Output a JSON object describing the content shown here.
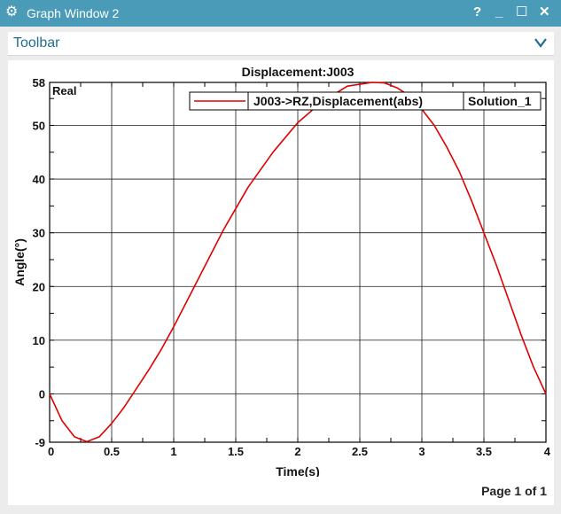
{
  "window": {
    "title": "Graph Window 2",
    "icons": {
      "settings": "gear-icon",
      "help": "help-icon",
      "minimize": "minimize-icon",
      "maximize": "maximize-icon",
      "close": "close-icon"
    },
    "help_label": "?"
  },
  "toolbar": {
    "label": "Toolbar",
    "expand_icon": "chevron-down-icon"
  },
  "colors": {
    "titlebar": "#4a9bb8",
    "toolbar_text": "#1e6f93",
    "series": "#e00000"
  },
  "page_indicator": "Page 1 of 1",
  "chart_data": {
    "type": "line",
    "title": "Displacement:J003",
    "xlabel": "Time(s)",
    "ylabel": "Angle(°)",
    "corner_label": "Real",
    "xlim": [
      0,
      4
    ],
    "ylim": [
      -9,
      58
    ],
    "xticks": [
      0,
      0.5,
      1,
      1.5,
      2,
      2.5,
      3,
      3.5,
      4
    ],
    "xtick_labels": [
      "0",
      "0.5",
      "1",
      "1.5",
      "2",
      "2.5",
      "3",
      "3.5",
      "4"
    ],
    "yticks": [
      -9,
      0,
      10,
      20,
      30,
      40,
      50,
      58
    ],
    "ytick_labels": [
      "-9",
      "0",
      "10",
      "20",
      "30",
      "40",
      "50",
      "58"
    ],
    "grid": true,
    "legend": {
      "placement": "top-right"
    },
    "series": [
      {
        "name": "J003->RZ,Displacement(abs)",
        "name_suffix": "Solution_1",
        "color": "#e00000",
        "x": [
          0,
          0.1,
          0.2,
          0.3,
          0.4,
          0.5,
          0.6,
          0.7,
          0.8,
          0.9,
          1.0,
          1.2,
          1.4,
          1.6,
          1.8,
          2.0,
          2.2,
          2.4,
          2.6,
          2.7,
          2.8,
          2.9,
          3.0,
          3.1,
          3.2,
          3.3,
          3.4,
          3.5,
          3.6,
          3.7,
          3.8,
          3.9,
          4.0
        ],
        "values": [
          0,
          -5,
          -8,
          -8.9,
          -8,
          -5.5,
          -2.5,
          1,
          4.5,
          8.3,
          12.5,
          21.5,
          30.5,
          38.5,
          45,
          50.5,
          54.5,
          57.3,
          58,
          57.9,
          57,
          55.5,
          53,
          50,
          46,
          41.5,
          36,
          30,
          24,
          17.5,
          11,
          5,
          0
        ]
      }
    ]
  }
}
